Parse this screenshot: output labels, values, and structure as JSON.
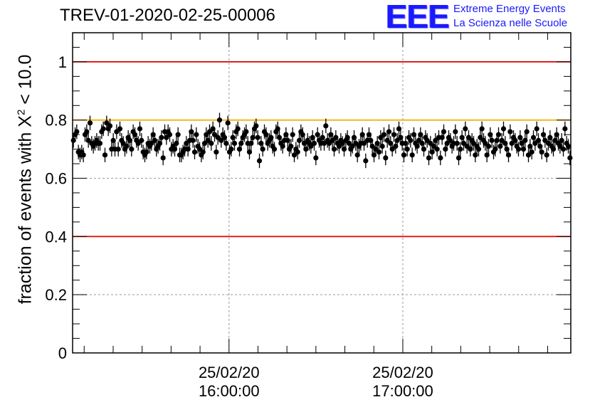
{
  "header": {
    "title": "TREV-01-2020-02-25-00006"
  },
  "logo": {
    "mark": "EEE",
    "line1": "Extreme Energy Events",
    "line2": "La Scienza nelle Scuole",
    "color": "#1a1aff"
  },
  "chart_data": {
    "type": "scatter",
    "title": "TREV-01-2020-02-25-00006",
    "ylabel_prefix": "fraction of events with ",
    "ylabel_symbol": "X",
    "ylabel_sup": "2",
    "ylabel_suffix": " < 10.0",
    "xlim_minutes": [
      0,
      172
    ],
    "ylim": [
      0,
      1.1
    ],
    "y_ticks": [
      {
        "value": 0,
        "label": "0"
      },
      {
        "value": 0.2,
        "label": "0.2"
      },
      {
        "value": 0.4,
        "label": "0.4"
      },
      {
        "value": 0.6,
        "label": "0.6"
      },
      {
        "value": 0.8,
        "label": "0.8"
      },
      {
        "value": 1.0,
        "label": "1"
      }
    ],
    "x_ticks": [
      {
        "minute": 54,
        "date": "25/02/20",
        "time": "16:00:00"
      },
      {
        "minute": 114,
        "date": "25/02/20",
        "time": "17:00:00"
      }
    ],
    "grid": true,
    "reference_lines": [
      {
        "value": 1.0,
        "color": "#e00000"
      },
      {
        "value": 0.8,
        "color": "#f0b000"
      },
      {
        "value": 0.4,
        "color": "#e00000"
      }
    ],
    "error": 0.025,
    "marker_color": "#000000",
    "values": [
      0.73,
      0.75,
      0.76,
      0.69,
      0.68,
      0.69,
      0.68,
      0.75,
      0.76,
      0.73,
      0.79,
      0.72,
      0.71,
      0.72,
      0.73,
      0.72,
      0.72,
      0.76,
      0.77,
      0.68,
      0.79,
      0.77,
      0.78,
      0.7,
      0.73,
      0.7,
      0.76,
      0.7,
      0.77,
      0.73,
      0.72,
      0.7,
      0.71,
      0.74,
      0.73,
      0.7,
      0.76,
      0.75,
      0.73,
      0.72,
      0.77,
      0.73,
      0.69,
      0.68,
      0.69,
      0.72,
      0.71,
      0.72,
      0.75,
      0.73,
      0.7,
      0.71,
      0.72,
      0.74,
      0.67,
      0.76,
      0.74,
      0.76,
      0.75,
      0.7,
      0.71,
      0.7,
      0.72,
      0.75,
      0.68,
      0.68,
      0.69,
      0.7,
      0.72,
      0.7,
      0.73,
      0.76,
      0.73,
      0.69,
      0.75,
      0.71,
      0.7,
      0.68,
      0.69,
      0.72,
      0.75,
      0.73,
      0.76,
      0.72,
      0.77,
      0.75,
      0.69,
      0.74,
      0.8,
      0.73,
      0.75,
      0.74,
      0.72,
      0.79,
      0.69,
      0.7,
      0.74,
      0.72,
      0.76,
      0.77,
      0.7,
      0.72,
      0.74,
      0.75,
      0.76,
      0.72,
      0.69,
      0.72,
      0.74,
      0.77,
      0.78,
      0.74,
      0.66,
      0.72,
      0.7,
      0.76,
      0.75,
      0.72,
      0.73,
      0.74,
      0.71,
      0.7,
      0.76,
      0.77,
      0.74,
      0.72,
      0.71,
      0.73,
      0.75,
      0.73,
      0.7,
      0.71,
      0.75,
      0.68,
      0.7,
      0.69,
      0.73,
      0.76,
      0.75,
      0.72,
      0.7,
      0.73,
      0.72,
      0.71,
      0.74,
      0.72,
      0.67,
      0.75,
      0.73,
      0.72,
      0.74,
      0.72,
      0.78,
      0.73,
      0.72,
      0.75,
      0.73,
      0.7,
      0.74,
      0.72,
      0.71,
      0.73,
      0.72,
      0.7,
      0.73,
      0.74,
      0.72,
      0.7,
      0.71,
      0.74,
      0.72,
      0.68,
      0.71,
      0.72,
      0.75,
      0.72,
      0.66,
      0.73,
      0.75,
      0.73,
      0.71,
      0.68,
      0.7,
      0.72,
      0.69,
      0.74,
      0.71,
      0.75,
      0.67,
      0.73,
      0.76,
      0.72,
      0.7,
      0.75,
      0.71,
      0.73,
      0.77,
      0.74,
      0.72,
      0.68,
      0.72,
      0.7,
      0.74,
      0.73,
      0.68,
      0.75,
      0.72,
      0.71,
      0.73,
      0.75,
      0.72,
      0.7,
      0.74,
      0.73,
      0.67,
      0.72,
      0.69,
      0.71,
      0.73,
      0.7,
      0.74,
      0.67,
      0.74,
      0.76,
      0.7,
      0.72,
      0.74,
      0.73,
      0.71,
      0.72,
      0.76,
      0.72,
      0.67,
      0.7,
      0.74,
      0.72,
      0.77,
      0.71,
      0.74,
      0.7,
      0.73,
      0.72,
      0.68,
      0.71,
      0.7,
      0.74,
      0.77,
      0.73,
      0.72,
      0.68,
      0.71,
      0.75,
      0.73,
      0.69,
      0.7,
      0.73,
      0.75,
      0.71,
      0.73,
      0.77,
      0.72,
      0.7,
      0.68,
      0.76,
      0.72,
      0.74,
      0.73,
      0.71,
      0.7,
      0.74,
      0.72,
      0.7,
      0.73,
      0.76,
      0.68,
      0.71,
      0.69,
      0.74,
      0.72,
      0.77,
      0.73,
      0.71,
      0.69,
      0.75,
      0.73,
      0.68,
      0.72,
      0.74,
      0.71,
      0.7,
      0.73,
      0.75,
      0.72,
      0.71,
      0.73,
      0.7,
      0.77,
      0.72,
      0.71,
      0.67
    ]
  }
}
